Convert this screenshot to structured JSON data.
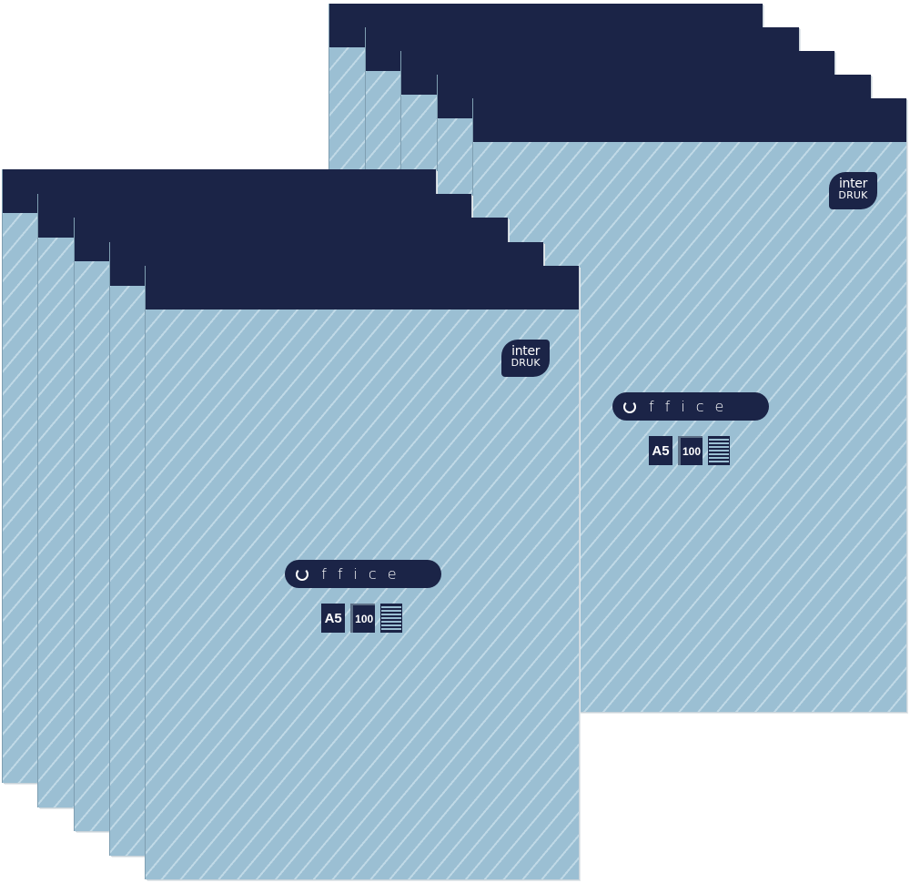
{
  "colors": {
    "cover": "#9bbfd3",
    "band": "#1b2447",
    "text": "#ffffff"
  },
  "product": {
    "brand_line1": "inter",
    "brand_line2": "DRUK",
    "name": "ffice",
    "name_icon": "refresh-circle-icon",
    "format": "A5",
    "sheets": "100",
    "ruling_icon": "lined-paper-icon"
  }
}
